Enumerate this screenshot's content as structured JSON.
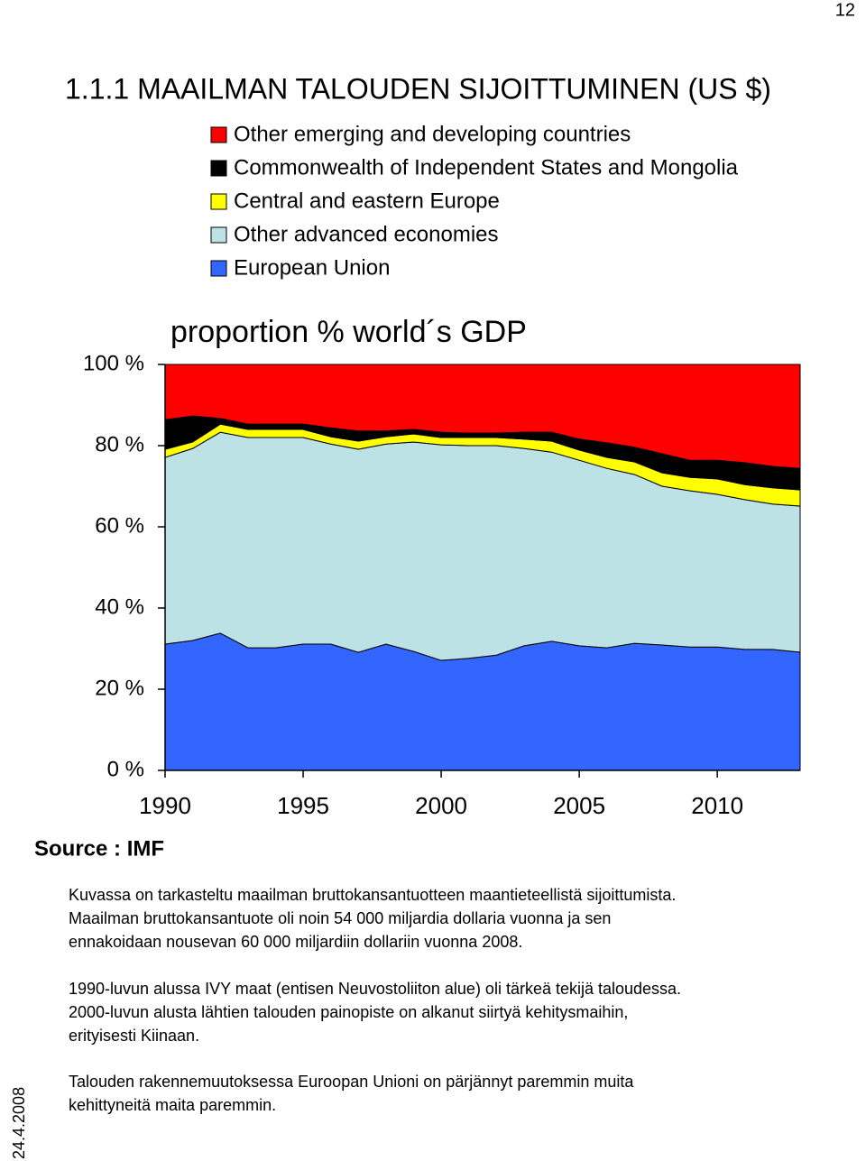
{
  "page_number": "12",
  "heading": "1.1.1 MAAILMAN TALOUDEN SIJOITTUMINEN (US $)",
  "source": "Source : IMF",
  "date": "24.4.2008",
  "paragraphs": [
    [
      "Kuvassa on tarkasteltu maailman bruttokansantuotteen maantieteellistä sijoittumista.",
      "Maailman bruttokansantuote oli noin 54 000 miljardia dollaria vuonna ja sen",
      "ennakoidaan nousevan 60 000 miljardiin dollariin vuonna 2008."
    ],
    [
      "1990-luvun alussa IVY maat (entisen Neuvostoliiton alue) oli tärkeä tekijä taloudessa.",
      "2000-luvun alusta lähtien talouden painopiste on alkanut siirtyä kehitysmaihin,",
      "erityisesti Kiinaan."
    ],
    [
      "Talouden rakennemuutoksessa Euroopan Unioni on pärjännyt paremmin muita",
      "kehittyneitä maita paremmin."
    ]
  ],
  "chart_data": {
    "type": "stacked-area",
    "title": "proportion % world´s GDP",
    "x": [
      1990,
      1991,
      1992,
      1993,
      1994,
      1995,
      1996,
      1997,
      1998,
      1999,
      2000,
      2001,
      2002,
      2003,
      2004,
      2005,
      2006,
      2007,
      2008,
      2009,
      2010,
      2011,
      2012,
      2013
    ],
    "xlim": [
      1990,
      2013
    ],
    "xticks": [
      1990,
      1995,
      2000,
      2005,
      2010
    ],
    "ylim": [
      0,
      100
    ],
    "yticks": [
      {
        "value": 0,
        "label": "0 %"
      },
      {
        "value": 20,
        "label": "20 %"
      },
      {
        "value": 40,
        "label": "40 %"
      },
      {
        "value": 60,
        "label": "60 %"
      },
      {
        "value": 80,
        "label": "80 %"
      },
      {
        "value": 100,
        "label": "100 %"
      }
    ],
    "series": [
      {
        "name": "European Union",
        "color": "#3366ff",
        "values": [
          31.1,
          32,
          33.8,
          30.2,
          30.2,
          31.1,
          31.1,
          29.1,
          31.1,
          29.3,
          27.1,
          27.6,
          28.4,
          30.7,
          31.8,
          30.7,
          30.2,
          31.3,
          30.9,
          30.4,
          30.4,
          29.8,
          29.8,
          29.1
        ]
      },
      {
        "name": "Other advanced economies",
        "color": "#bde2e5",
        "values": [
          46,
          47.3,
          49.5,
          51.8,
          51.8,
          50.9,
          49.3,
          50,
          49.3,
          51.6,
          53.1,
          52.4,
          51.6,
          48.6,
          46.6,
          45.7,
          44.2,
          41.6,
          39.1,
          38.5,
          37.6,
          36.9,
          35.8,
          36
        ]
      },
      {
        "name": "Central and eastern Europe",
        "color": "#ffff00",
        "values": [
          2,
          1.6,
          2,
          2,
          2,
          2,
          1.8,
          2,
          1.8,
          2,
          1.8,
          2,
          2,
          2.3,
          2.7,
          2.5,
          2.7,
          3.1,
          3.3,
          3.3,
          3.8,
          3.7,
          4,
          4
        ]
      },
      {
        "name": "Commonwealth of Independent States and Mongolia",
        "color": "#000000",
        "values": [
          7.3,
          6.4,
          1.4,
          1.3,
          1.3,
          1.3,
          2.2,
          2.5,
          1.4,
          1.1,
          1.3,
          1.1,
          1.1,
          1.7,
          2.2,
          2.7,
          3.6,
          3.6,
          4.7,
          4.2,
          4.6,
          5.4,
          5.3,
          5.3
        ]
      },
      {
        "name": "Other emerging and developing countries",
        "color": "#ff0000",
        "values": [
          13.6,
          12.7,
          13.3,
          14.7,
          14.7,
          14.7,
          15.6,
          16.4,
          16.4,
          16,
          16.7,
          16.9,
          16.9,
          16.7,
          16.7,
          18.4,
          19.3,
          20.4,
          22,
          23.6,
          23.6,
          24.2,
          25.1,
          25.6
        ]
      }
    ]
  }
}
